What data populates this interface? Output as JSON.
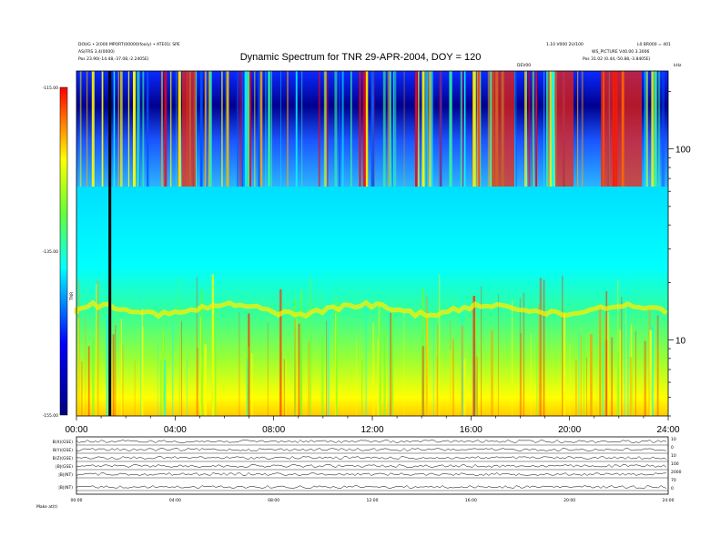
{
  "header": {
    "top_left_1": "DOUG • 2(000 MPORT(00000(foo/y) • ATE01( SPE",
    "top_left_2": "AS(FRS 3.4(0000)",
    "top_left_3": "Pos    23.90(-14.48,-37.08,-2.2405E)",
    "top_right_1": "1.10 V000 2U/100",
    "top_right_1b": "L0 BR000 = 401",
    "top_right_2": "WS_PICTURE V40.00 3.3006",
    "top_right_3": "Pos    31.02 (0.44,-50.88,-3.8405E)",
    "ticker_label": "DEV00",
    "kHz_label": "kHz"
  },
  "chart_data": {
    "type": "heatmap",
    "title": "Dynamic Spectrum for TNR 29-APR-2004, DOY = 120",
    "x_tick_labels": [
      "00:00",
      "04:00",
      "08:00",
      "12:00",
      "16:00",
      "20:00",
      "24:00"
    ],
    "x_ticks_hours": [
      0,
      4,
      8,
      12,
      16,
      20,
      24
    ],
    "xlim": [
      0,
      24
    ],
    "yscale": "log",
    "ylim_khz": [
      4,
      256
    ],
    "y_tick_values": [
      10,
      100
    ],
    "y_tick_labels": [
      "10",
      "100"
    ],
    "colorbar": {
      "tick_labels": [
        "-115.00",
        "-135.00",
        "-155.00"
      ],
      "label": "TNR",
      "colors": [
        "#ff0000",
        "#ffff00",
        "#00ffff",
        "#0000ff",
        "#000000"
      ]
    },
    "data_gap_hour": 1.3,
    "band_split_khz": 65,
    "mag_panel": {
      "row_labels": [
        "B(X)(GSE)",
        "B(Y)(GSE)",
        "B(Z)(GSE)",
        "|B|(GSE)",
        "|B|(NT)",
        "|B|(NT)"
      ],
      "right_labels": [
        "10",
        "0",
        "10",
        "100",
        "2000",
        "70",
        "0"
      ],
      "x_tick_labels": [
        "00:00",
        "04:00",
        "08:00",
        "12:00",
        "16:00",
        "20:00",
        "24:00"
      ],
      "bottom_label": "Make   at(t)"
    }
  }
}
